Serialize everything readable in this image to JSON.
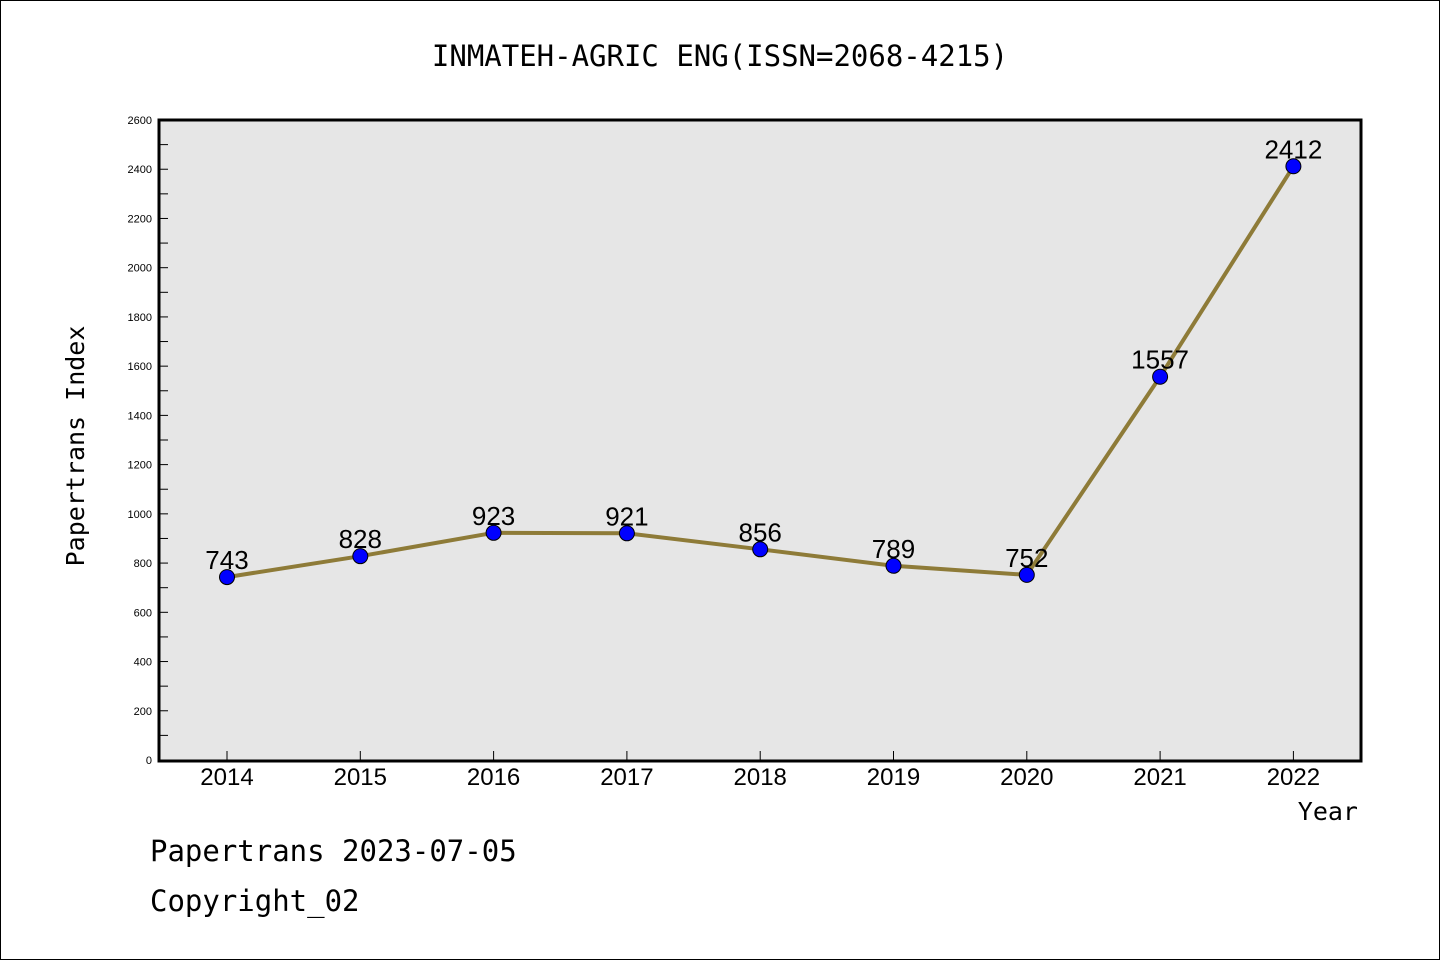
{
  "chart_data": {
    "type": "line",
    "title": "INMATEH-AGRIC ENG(ISSN=2068-4215)",
    "xlabel": "Year",
    "ylabel": "Papertrans Index",
    "categories": [
      "2014",
      "2015",
      "2016",
      "2017",
      "2018",
      "2019",
      "2020",
      "2021",
      "2022"
    ],
    "values": [
      743,
      828,
      923,
      921,
      856,
      789,
      752,
      1557,
      2412
    ],
    "data_labels": [
      "743",
      "828",
      "923",
      "921",
      "856",
      "789",
      "752",
      "1557",
      "2412"
    ],
    "ylim": [
      0,
      2600
    ],
    "yticks": [
      0,
      200,
      400,
      600,
      800,
      1000,
      1200,
      1400,
      1600,
      1800,
      2000,
      2200,
      2400,
      2600
    ],
    "grid": false,
    "colors": {
      "line": "#8E7B38",
      "marker": "#0000FF",
      "plot_background": "#E6E6E6"
    }
  },
  "footer": {
    "line1": "Papertrans 2023-07-05",
    "line2": "Copyright_02"
  }
}
